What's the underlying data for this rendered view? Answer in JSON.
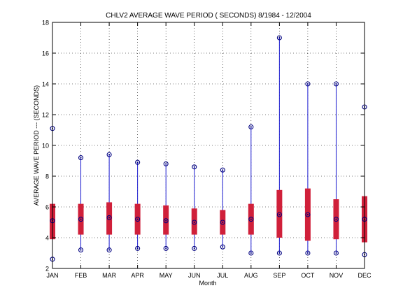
{
  "chart_data": {
    "type": "box",
    "title": "CHLV2  AVERAGE WAVE PERIOD ( SECONDS) 8/1984 - 12/2004",
    "xlabel": "Month",
    "ylabel": "AVERAGE WAVE PERIOD --- (SECONDS)",
    "ylim": [
      2,
      18
    ],
    "yticks": [
      2,
      4,
      6,
      8,
      10,
      12,
      14,
      16,
      18
    ],
    "categories": [
      "JAN",
      "FEB",
      "MAR",
      "APR",
      "MAY",
      "JUN",
      "JUL",
      "AUG",
      "SEP",
      "OCT",
      "NOV",
      "DEC"
    ],
    "series": [
      {
        "min": 2.6,
        "q1": 3.9,
        "median": 5.1,
        "q3": 6.2,
        "max": 11.1
      },
      {
        "min": 3.2,
        "q1": 4.2,
        "median": 5.2,
        "q3": 6.2,
        "max": 9.2
      },
      {
        "min": 3.2,
        "q1": 4.2,
        "median": 5.3,
        "q3": 6.3,
        "max": 9.4
      },
      {
        "min": 3.3,
        "q1": 4.2,
        "median": 5.2,
        "q3": 6.2,
        "max": 8.9
      },
      {
        "min": 3.3,
        "q1": 4.2,
        "median": 5.1,
        "q3": 6.1,
        "max": 8.8
      },
      {
        "min": 3.3,
        "q1": 4.2,
        "median": 5.0,
        "q3": 5.9,
        "max": 8.6
      },
      {
        "min": 3.4,
        "q1": 4.2,
        "median": 5.0,
        "q3": 5.8,
        "max": 8.4
      },
      {
        "min": 3.0,
        "q1": 4.2,
        "median": 5.2,
        "q3": 6.2,
        "max": 11.2
      },
      {
        "min": 3.0,
        "q1": 4.0,
        "median": 5.5,
        "q3": 7.1,
        "max": 17.0
      },
      {
        "min": 3.0,
        "q1": 3.8,
        "median": 5.5,
        "q3": 7.2,
        "max": 14.0
      },
      {
        "min": 3.0,
        "q1": 3.9,
        "median": 5.2,
        "q3": 6.5,
        "max": 14.0
      },
      {
        "min": 2.9,
        "q1": 3.7,
        "median": 5.2,
        "q3": 6.7,
        "max": 12.5
      }
    ],
    "grid": true,
    "colors": {
      "box": "#d0203a",
      "whisker": "#1a1ad0",
      "marker": "#000080",
      "grid": "#000000"
    }
  }
}
